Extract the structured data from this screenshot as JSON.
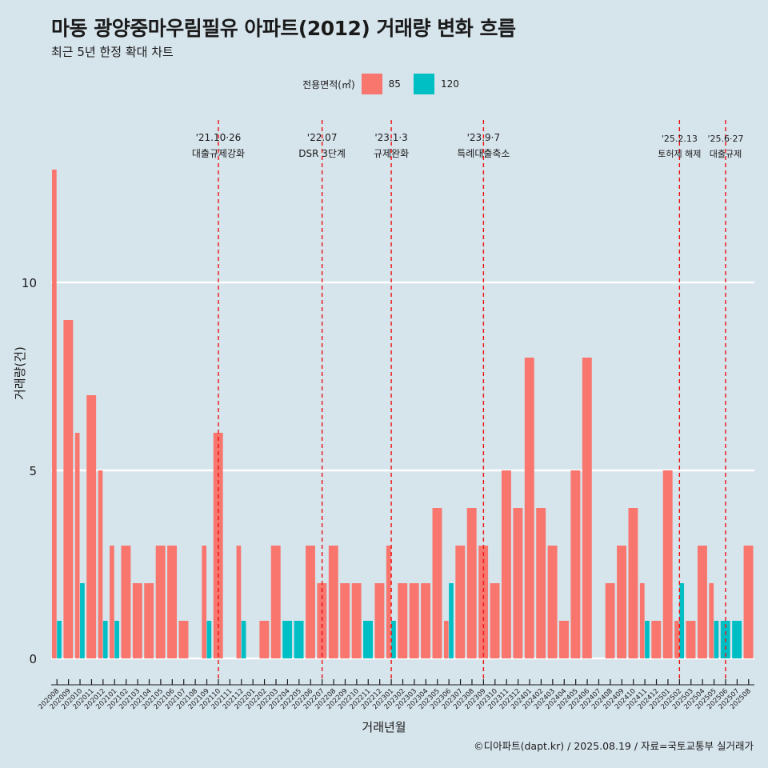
{
  "title": "마동 광양중마우림필유 아파트(2012) 거래량 변화 흐름",
  "subtitle": "최근 5년 한정 확대 차트",
  "caption": "©디아파트(dapt.kr) / 2025.08.19 / 자료=국토교통부 실거래가",
  "legend": {
    "title": "전용면적(㎡)",
    "items": [
      {
        "label": "85",
        "color": "#f8766d"
      },
      {
        "label": "120",
        "color": "#00bfc4"
      }
    ]
  },
  "chart_data": {
    "type": "bar",
    "xlabel": "거래년월",
    "ylabel": "거래량(건)",
    "ylim": [
      -0.6,
      14
    ],
    "yticks": [
      0,
      5,
      10
    ],
    "grid": true,
    "legend_position": "top",
    "categories": [
      "202008",
      "202009",
      "202010",
      "202011",
      "202012",
      "202101",
      "202102",
      "202103",
      "202104",
      "202105",
      "202106",
      "202107",
      "202108",
      "202109",
      "202110",
      "202111",
      "202112",
      "202201",
      "202202",
      "202203",
      "202204",
      "202205",
      "202206",
      "202207",
      "202208",
      "202209",
      "202210",
      "202211",
      "202212",
      "202301",
      "202302",
      "202303",
      "202304",
      "202305",
      "202306",
      "202307",
      "202308",
      "202309",
      "202310",
      "202311",
      "202312",
      "202401",
      "202402",
      "202403",
      "202404",
      "202405",
      "202406",
      "202407",
      "202408",
      "202409",
      "202410",
      "202411",
      "202412",
      "202501",
      "202502",
      "202503",
      "202504",
      "202505",
      "202506",
      "202507",
      "202508"
    ],
    "series": [
      {
        "name": "85",
        "color": "#f8766d",
        "values": [
          13,
          9,
          6,
          7,
          5,
          3,
          3,
          2,
          2,
          3,
          3,
          1,
          0,
          3,
          6,
          0,
          3,
          0,
          1,
          3,
          0,
          0,
          3,
          2,
          3,
          2,
          2,
          0,
          2,
          3,
          2,
          2,
          2,
          4,
          1,
          3,
          4,
          3,
          2,
          5,
          4,
          8,
          4,
          3,
          1,
          5,
          8,
          0,
          2,
          3,
          4,
          2,
          1,
          5,
          1,
          1,
          3,
          2,
          0,
          0,
          3
        ]
      },
      {
        "name": "120",
        "color": "#00bfc4",
        "values": [
          1,
          0,
          2,
          0,
          1,
          1,
          0,
          0,
          0,
          0,
          0,
          0,
          0,
          1,
          0,
          0,
          1,
          0,
          0,
          0,
          1,
          1,
          0,
          0,
          0,
          0,
          0,
          1,
          0,
          1,
          0,
          0,
          0,
          0,
          2,
          0,
          0,
          0,
          0,
          0,
          0,
          0,
          0,
          0,
          0,
          0,
          0,
          0,
          0,
          0,
          0,
          1,
          0,
          0,
          2,
          0,
          0,
          1,
          1,
          1,
          0
        ]
      }
    ],
    "events": [
      {
        "x": "202110",
        "date": "'21.10·26",
        "label": "대출규제강화"
      },
      {
        "x": "202207",
        "date": "'22.07",
        "label": "DSR 3단계"
      },
      {
        "x": "202301",
        "date": "'23.1·3",
        "label": "규제완화"
      },
      {
        "x": "202309",
        "date": "'23.9·7",
        "label": "특례대출축소"
      },
      {
        "x": "202502",
        "date": "'25.2.13",
        "label": "토허제 해제"
      },
      {
        "x": "202506",
        "date": "'25.6·27",
        "label": "대출규제"
      }
    ]
  }
}
